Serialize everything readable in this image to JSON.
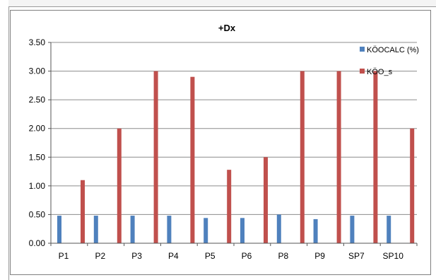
{
  "chart_data": {
    "type": "bar",
    "title": "+Dx",
    "xlabel": "",
    "ylabel": "",
    "ylim": [
      0,
      3.5
    ],
    "yticks": [
      "0.00",
      "0.50",
      "1.00",
      "1.50",
      "2.00",
      "2.50",
      "3.00",
      "3.50"
    ],
    "grid": true,
    "legend_position": "right",
    "categories": [
      "P1",
      "P2",
      "P3",
      "P4",
      "P5",
      "P6",
      "P8",
      "P9",
      "SP7",
      "SP10"
    ],
    "series": [
      {
        "name": "KÖOCALC (%)",
        "color": "#4f81bd",
        "values": [
          0.48,
          0.48,
          0.48,
          0.48,
          0.44,
          0.44,
          0.5,
          0.42,
          0.48,
          0.48
        ]
      },
      {
        "name": "KÖO_s",
        "color": "#c0504d",
        "values": [
          1.1,
          2.0,
          3.0,
          2.9,
          1.28,
          1.5,
          3.0,
          3.0,
          3.0,
          2.0
        ]
      }
    ]
  }
}
